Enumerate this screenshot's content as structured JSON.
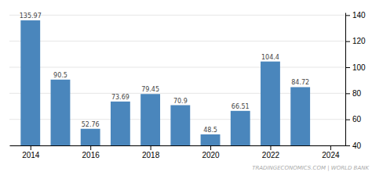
{
  "chart_data": {
    "type": "bar",
    "x": [
      2014,
      2015,
      2016,
      2017,
      2018,
      2019,
      2020,
      2021,
      2022,
      2023
    ],
    "values": [
      135.97,
      90.5,
      52.76,
      73.69,
      79.45,
      70.9,
      48.5,
      66.51,
      104.4,
      84.72
    ],
    "color": "#4a86bc",
    "xlim": [
      2013.3,
      2024.5
    ],
    "xticks": [
      2014,
      2016,
      2018,
      2020,
      2022,
      2024
    ],
    "ylim": [
      40,
      142
    ],
    "yticks": [
      40,
      60,
      80,
      100,
      120,
      140
    ],
    "grid": true,
    "data_labels": true,
    "annotations": [
      "TRADINGECONOMICS.COM | WORLD BANK"
    ]
  }
}
